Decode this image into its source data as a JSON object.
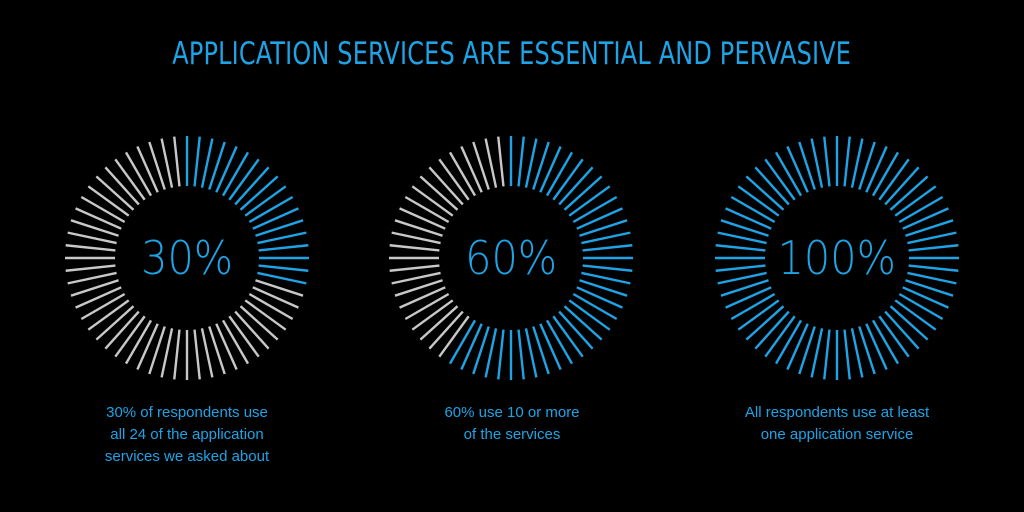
{
  "colors": {
    "accent": "#1ea4e6",
    "inactive": "#c8c8c8",
    "background": "#000000"
  },
  "chart_data": [
    {
      "type": "radial-gauge",
      "value": 30,
      "label": "30%",
      "caption": [
        "30% of respondents use",
        "all 24 of the application",
        "services we asked about"
      ]
    },
    {
      "type": "radial-gauge",
      "value": 60,
      "label": "60%",
      "caption": [
        "60% use 10 or more",
        "of the services"
      ]
    },
    {
      "type": "radial-gauge",
      "value": 100,
      "label": "100%",
      "caption": [
        "All respondents use at least",
        "one application service"
      ]
    }
  ],
  "header": {
    "title": "APPLICATION SERVICES ARE ESSENTIAL AND PERVASIVE"
  }
}
